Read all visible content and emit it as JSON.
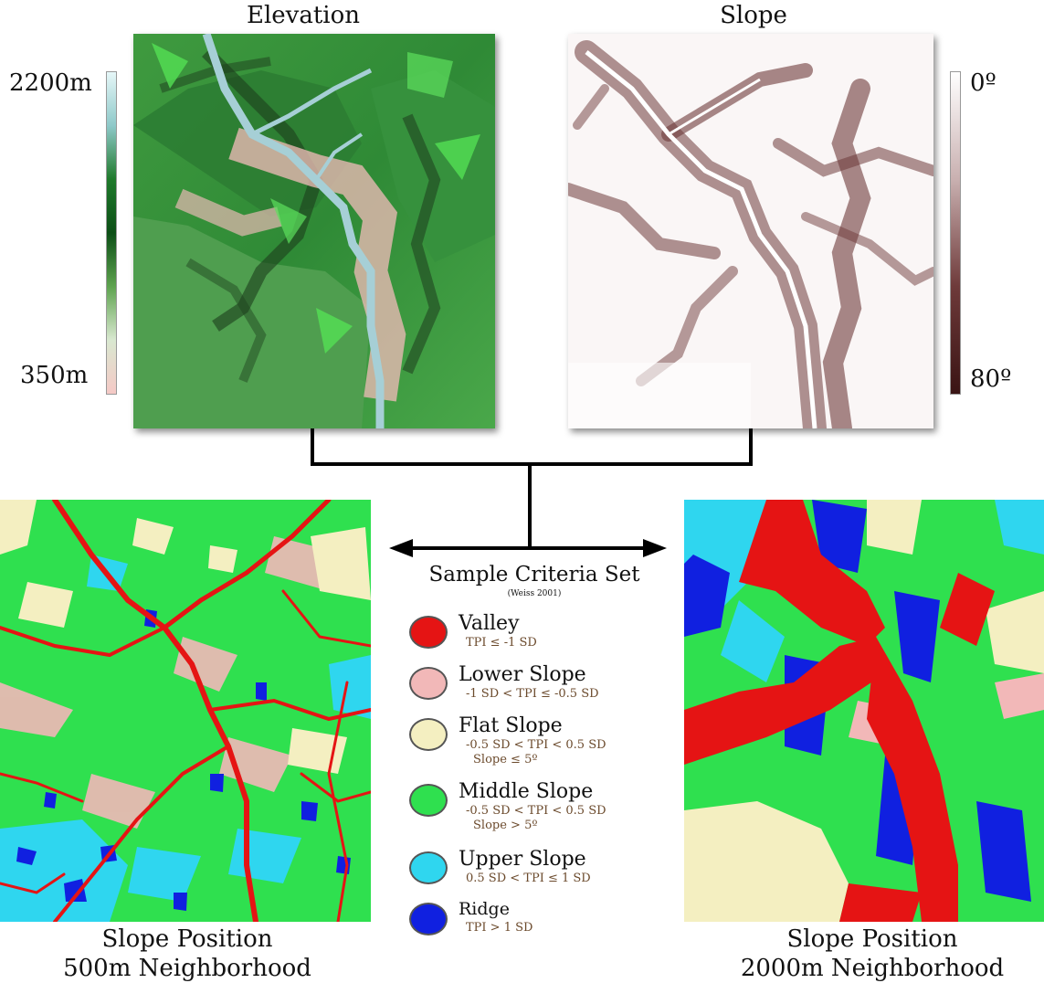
{
  "titles": {
    "elevation": "Elevation",
    "slope": "Slope"
  },
  "elevation_scale": {
    "max_label": "2200m",
    "min_label": "350m",
    "colors": [
      "#e6f7f8",
      "#8ec9c9",
      "#1f7a2b",
      "#0c4f16",
      "#5ea34f",
      "#d9e8d0",
      "#f5c9c6"
    ]
  },
  "slope_scale": {
    "min_label": "0º",
    "max_label": "80º",
    "colors": [
      "#ffffff",
      "#c9b0b0",
      "#6e3a3a",
      "#3a1414"
    ]
  },
  "criteria": {
    "title": "Sample Criteria Set",
    "citation": "(Weiss 2001)"
  },
  "legend": [
    {
      "name": "Valley",
      "color": "#e51414",
      "criteria": [
        "TPI ≤ -1 SD"
      ]
    },
    {
      "name": "Lower Slope",
      "color": "#f2b8b8",
      "criteria": [
        "-1 SD < TPI ≤ -0.5 SD"
      ]
    },
    {
      "name": "Flat Slope",
      "color": "#f4efc1",
      "criteria": [
        "-0.5 SD < TPI < 0.5 SD",
        "Slope ≤ 5º"
      ]
    },
    {
      "name": "Middle Slope",
      "color": "#2fe04f",
      "criteria": [
        "-0.5 SD < TPI < 0.5 SD",
        "Slope > 5º"
      ]
    },
    {
      "name": "Upper Slope",
      "color": "#2fd6ef",
      "criteria": [
        "0.5 SD < TPI ≤ 1 SD"
      ]
    },
    {
      "name": "Ridge",
      "color": "#1020e0",
      "criteria": [
        "TPI > 1 SD"
      ]
    }
  ],
  "captions": {
    "left": {
      "line1": "Slope Position",
      "line2": "500m Neighborhood"
    },
    "right": {
      "line1": "Slope Position",
      "line2": "2000m Neighborhood"
    }
  }
}
